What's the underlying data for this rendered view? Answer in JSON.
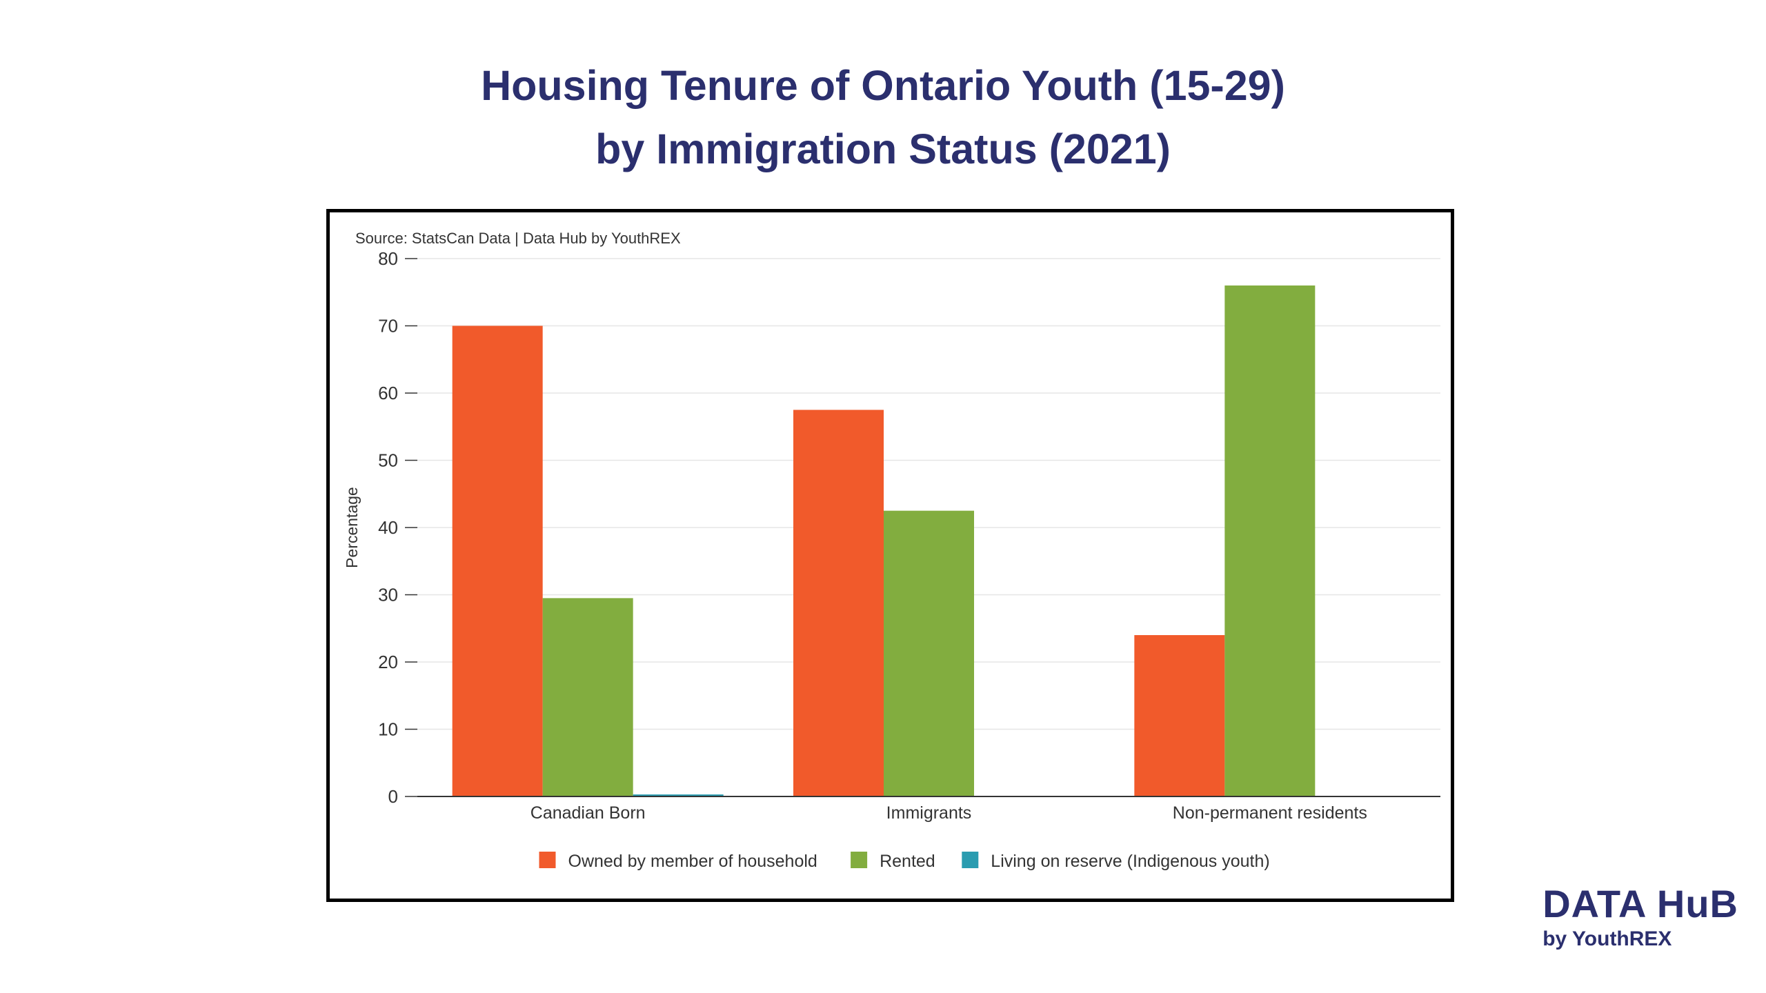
{
  "title": {
    "line1": "Housing Tenure of Ontario Youth (15-29)",
    "line2": "by Immigration Status (2021)"
  },
  "source": "Source: StatsCan Data | Data Hub by YouthREX",
  "brand": {
    "main": "DATA HuB",
    "sub": "by YouthREX"
  },
  "chart_data": {
    "type": "bar",
    "categories": [
      "Canadian Born",
      "Immigrants",
      "Non-permanent residents"
    ],
    "series": [
      {
        "name": "Owned by member of household",
        "values": [
          70,
          57.5,
          24
        ],
        "color": "#f15a2b"
      },
      {
        "name": "Rented",
        "values": [
          29.5,
          42.5,
          76
        ],
        "color": "#82ad3f"
      },
      {
        "name": "Living on reserve (Indigenous youth)",
        "values": [
          0.3,
          0,
          0
        ],
        "color": "#2a9cb0"
      }
    ],
    "ylabel": "Percentage",
    "ylim": [
      0,
      80
    ],
    "yticks": [
      0,
      10,
      20,
      30,
      40,
      50,
      60,
      70,
      80
    ],
    "grid": true,
    "legend": "bottom-center"
  }
}
